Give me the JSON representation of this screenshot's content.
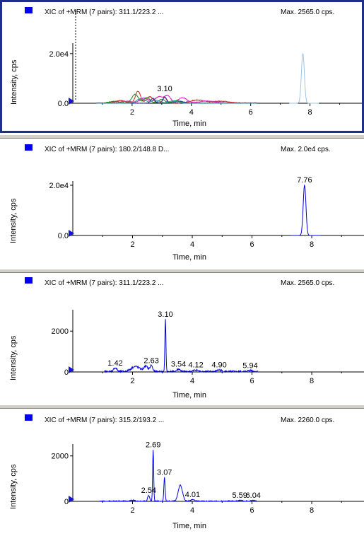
{
  "chart_data": [
    {
      "type": "line",
      "title": "XIC of +MRM (7 pairs): 311.1/223.2 ...",
      "max_label": "Max. 2565.0 cps.",
      "xlabel": "Time, min",
      "ylabel": "Intensity, cps",
      "xlim": [
        0,
        9.75
      ],
      "ylim": [
        0,
        26500
      ],
      "x_ticks": [
        "2",
        "4",
        "6",
        "8"
      ],
      "y_ticks": [
        {
          "label": "2.0e4",
          "value": 20000
        },
        {
          "label": "0.0",
          "value": 0
        }
      ],
      "peak_labels": [
        {
          "text": "3.10",
          "x": 3.1,
          "y": 3700
        }
      ],
      "series": [
        {
          "color": "#9fc3e6",
          "kind": "peak",
          "peaks": [
            [
              7.76,
              20000,
              0.07
            ]
          ],
          "noise": 0,
          "range": [
            7.3,
            8.3
          ]
        },
        {
          "color": "#d12020",
          "kind": "peaks",
          "peaks": [
            [
              1.6,
              1000,
              0.25
            ],
            [
              2.2,
              4800,
              0.12
            ],
            [
              2.6,
              2600,
              0.15
            ],
            [
              3.1,
              2300,
              0.1
            ],
            [
              4.2,
              1200,
              0.35
            ],
            [
              5.0,
              700,
              0.4
            ]
          ],
          "noise": 350,
          "range": [
            0.8,
            6.2
          ]
        },
        {
          "color": "#e020c8",
          "kind": "peaks",
          "peaks": [
            [
              1.8,
              800,
              0.25
            ],
            [
              2.4,
              2000,
              0.2
            ],
            [
              2.9,
              2500,
              0.2
            ],
            [
              3.2,
              2800,
              0.15
            ],
            [
              3.7,
              2200,
              0.2
            ],
            [
              4.5,
              800,
              0.4
            ]
          ],
          "noise": 300,
          "range": [
            0.8,
            6.2
          ]
        },
        {
          "color": "#1a8a1a",
          "kind": "peaks",
          "peaks": [
            [
              1.4,
              700,
              0.25
            ],
            [
              2.1,
              3600,
              0.15
            ],
            [
              2.5,
              2200,
              0.15
            ],
            [
              3.0,
              1500,
              0.15
            ],
            [
              3.5,
              1000,
              0.2
            ]
          ],
          "noise": 250,
          "range": [
            0.8,
            6.2
          ]
        },
        {
          "color": "#1a3aa8",
          "kind": "peaks",
          "peaks": [
            [
              2.7,
              2000,
              0.1
            ],
            [
              3.1,
              2500,
              0.08
            ],
            [
              3.6,
              800,
              0.2
            ]
          ],
          "noise": 200,
          "range": [
            0.8,
            6.2
          ]
        },
        {
          "color": "#2a9a9a",
          "kind": "peaks",
          "peaks": [
            [
              2.3,
              1800,
              0.2
            ],
            [
              2.8,
              1200,
              0.2
            ],
            [
              3.4,
              900,
              0.2
            ]
          ],
          "noise": 200,
          "range": [
            0.8,
            6.2
          ]
        }
      ]
    },
    {
      "type": "line",
      "title": "XIC of +MRM (7 pairs): 180.2/148.8 D...",
      "max_label": "Max. 2.0e4 cps.",
      "xlabel": "Time, min",
      "ylabel": "Intensity, cps",
      "xlim": [
        0,
        9.75
      ],
      "ylim": [
        0,
        24500
      ],
      "x_ticks": [
        "2",
        "4",
        "6",
        "8"
      ],
      "y_ticks": [
        {
          "label": "2.0e4",
          "value": 20000
        },
        {
          "label": "0.0",
          "value": 0
        }
      ],
      "peak_labels": [
        {
          "text": "7.76",
          "x": 7.76,
          "y": 20000
        }
      ],
      "series": [
        {
          "color": "#0000e0",
          "kind": "peak",
          "peaks": [
            [
              7.76,
              20000,
              0.065
            ]
          ],
          "noise": 0,
          "range": [
            7.3,
            8.3
          ]
        }
      ]
    },
    {
      "type": "line",
      "title": "XIC of +MRM (7 pairs): 311.1/223.2 ...",
      "max_label": "Max. 2565.0 cps.",
      "xlabel": "Time, min",
      "ylabel": "Intensity, cps",
      "xlim": [
        0,
        9.75
      ],
      "ylim": [
        0,
        3150
      ],
      "x_ticks": [
        "2",
        "4",
        "6",
        "8"
      ],
      "y_ticks": [
        {
          "label": "2000",
          "value": 2000
        },
        {
          "label": "0",
          "value": 0
        }
      ],
      "peak_labels": [
        {
          "text": "1.42",
          "x": 1.42,
          "y": 180
        },
        {
          "text": "2.63",
          "x": 2.63,
          "y": 300
        },
        {
          "text": "3.10",
          "x": 3.1,
          "y": 2565
        },
        {
          "text": "3.54",
          "x": 3.54,
          "y": 120
        },
        {
          "text": "4.12",
          "x": 4.12,
          "y": 80
        },
        {
          "text": "4.90",
          "x": 4.9,
          "y": 80
        },
        {
          "text": "5.94",
          "x": 5.94,
          "y": 60
        }
      ],
      "series": [
        {
          "color": "#0000e0",
          "kind": "peaks",
          "peaks": [
            [
              1.42,
              180,
              0.08
            ],
            [
              2.1,
              250,
              0.2
            ],
            [
              2.45,
              250,
              0.1
            ],
            [
              2.63,
              300,
              0.06
            ],
            [
              3.1,
              2565,
              0.025
            ],
            [
              3.54,
              120,
              0.08
            ],
            [
              4.12,
              80,
              0.1
            ],
            [
              4.9,
              80,
              0.1
            ],
            [
              5.94,
              60,
              0.1
            ]
          ],
          "noise": 90,
          "range": [
            1.05,
            6.2
          ]
        }
      ]
    },
    {
      "type": "line",
      "title": "XIC of +MRM (7 pairs): 315.2/193.2 ...",
      "max_label": "Max. 2260.0 cps.",
      "xlabel": "Time, min",
      "ylabel": "Intensity, cps",
      "xlim": [
        0,
        9.75
      ],
      "ylim": [
        0,
        2800
      ],
      "x_ticks": [
        "2",
        "4",
        "6",
        "8"
      ],
      "y_ticks": [
        {
          "label": "2000",
          "value": 2000
        },
        {
          "label": "0",
          "value": 0
        }
      ],
      "peak_labels": [
        {
          "text": "2.54",
          "x": 2.54,
          "y": 250
        },
        {
          "text": "2.69",
          "x": 2.69,
          "y": 2260
        },
        {
          "text": "3.07",
          "x": 3.07,
          "y": 1050
        },
        {
          "text": "4.01",
          "x": 4.01,
          "y": 70
        },
        {
          "text": "5.59",
          "x": 5.59,
          "y": 30
        },
        {
          "text": "6.04",
          "x": 6.04,
          "y": 30
        }
      ],
      "series": [
        {
          "color": "#0000e0",
          "kind": "peaks",
          "peaks": [
            [
              2.0,
              40,
              0.1
            ],
            [
              2.54,
              250,
              0.05
            ],
            [
              2.69,
              2260,
              0.025
            ],
            [
              3.07,
              1050,
              0.03
            ],
            [
              3.6,
              700,
              0.1
            ],
            [
              4.01,
              70,
              0.08
            ],
            [
              5.59,
              30,
              0.1
            ],
            [
              6.04,
              30,
              0.1
            ]
          ],
          "noise": 45,
          "range": [
            0.9,
            6.15
          ]
        }
      ]
    }
  ]
}
